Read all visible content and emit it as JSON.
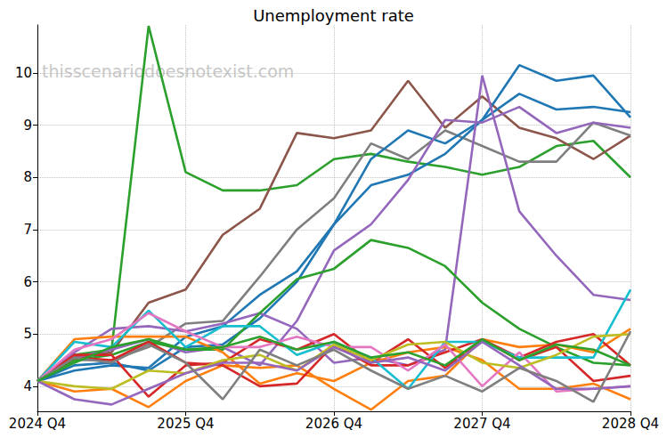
{
  "chart_data": {
    "type": "line",
    "title": "Unemployment rate",
    "annotations": [
      "thisscenariodoesnotexist.com"
    ],
    "categories": [
      "2024 Q4",
      null,
      null,
      null,
      "2025 Q4",
      null,
      null,
      null,
      "2026 Q4",
      null,
      null,
      null,
      "2027 Q4",
      null,
      null,
      null,
      "2028 Q4"
    ],
    "ylim": [
      3.52,
      10.92
    ],
    "yticks": [
      4,
      5,
      6,
      7,
      8,
      9,
      10
    ],
    "grid": true,
    "marker": "none",
    "series": [
      {
        "color": "#2ca02c",
        "values": [
          4.1,
          4.6,
          4.7,
          10.9,
          8.1,
          7.75,
          7.75,
          7.85,
          8.35,
          8.45,
          8.3,
          8.2,
          8.05,
          8.2,
          8.6,
          8.7,
          8.0
        ]
      },
      {
        "color": "#8c564b",
        "values": [
          4.1,
          4.55,
          4.65,
          5.6,
          5.85,
          6.9,
          7.4,
          8.85,
          8.75,
          8.9,
          9.85,
          8.95,
          9.55,
          8.95,
          8.75,
          8.35,
          8.8
        ]
      },
      {
        "color": "#7f7f7f",
        "values": [
          4.1,
          4.5,
          4.5,
          4.75,
          5.2,
          5.25,
          6.1,
          7.0,
          7.6,
          8.65,
          8.35,
          8.9,
          8.6,
          8.3,
          8.3,
          9.05,
          8.8
        ]
      },
      {
        "color": "#1f77b4",
        "values": [
          4.1,
          4.3,
          4.4,
          4.35,
          4.95,
          5.15,
          5.75,
          6.2,
          7.1,
          8.35,
          8.9,
          8.65,
          9.1,
          10.15,
          9.85,
          9.95,
          9.15
        ]
      },
      {
        "color": "#1f77b4",
        "values": [
          4.1,
          4.4,
          4.45,
          4.3,
          4.75,
          4.8,
          5.3,
          6.0,
          7.1,
          7.85,
          8.05,
          8.45,
          9.1,
          9.6,
          9.3,
          9.35,
          9.25
        ]
      },
      {
        "color": "#9467bd",
        "values": [
          4.1,
          4.55,
          4.7,
          4.9,
          4.65,
          4.75,
          4.4,
          5.25,
          6.6,
          7.1,
          7.95,
          9.1,
          9.05,
          9.35,
          8.85,
          9.05,
          8.95
        ]
      },
      {
        "color": "#9467bd",
        "values": [
          4.1,
          4.65,
          5.1,
          5.15,
          5.05,
          5.2,
          5.4,
          5.1,
          4.45,
          4.55,
          4.4,
          4.7,
          9.95,
          7.35,
          6.5,
          5.75,
          5.65
        ]
      },
      {
        "color": "#2ca02c",
        "values": [
          4.1,
          4.5,
          4.6,
          4.85,
          4.7,
          4.7,
          5.4,
          6.05,
          6.25,
          6.8,
          6.65,
          6.3,
          5.6,
          5.1,
          4.75,
          4.45,
          4.4
        ]
      },
      {
        "color": "#ff7f0e",
        "values": [
          4.1,
          4.9,
          4.95,
          4.95,
          4.95,
          4.65,
          4.05,
          4.25,
          4.1,
          4.45,
          4.65,
          4.75,
          4.5,
          3.95,
          3.95,
          4.05,
          3.75
        ]
      },
      {
        "color": "#ff7f0e",
        "values": [
          4.1,
          3.9,
          3.95,
          3.6,
          4.1,
          4.4,
          4.35,
          4.4,
          3.95,
          3.55,
          4.1,
          4.2,
          4.9,
          4.75,
          4.8,
          4.65,
          5.1
        ]
      },
      {
        "color": "#d62728",
        "values": [
          4.1,
          4.6,
          4.6,
          3.8,
          4.4,
          4.45,
          4.9,
          4.7,
          5.0,
          4.45,
          4.9,
          4.35,
          4.9,
          4.55,
          4.85,
          5.0,
          4.4
        ]
      },
      {
        "color": "#d62728",
        "values": [
          4.1,
          4.55,
          4.5,
          4.85,
          4.45,
          4.4,
          4.0,
          4.05,
          4.8,
          4.4,
          4.4,
          4.65,
          4.9,
          4.5,
          4.75,
          4.1,
          4.2
        ]
      },
      {
        "color": "#17becf",
        "values": [
          4.1,
          4.85,
          4.75,
          5.45,
          4.75,
          5.15,
          5.15,
          4.6,
          4.85,
          4.55,
          3.95,
          4.85,
          4.85,
          4.55,
          4.55,
          4.55,
          5.85
        ]
      },
      {
        "color": "#e377c2",
        "values": [
          4.1,
          4.7,
          4.9,
          5.4,
          5.05,
          4.75,
          4.75,
          4.95,
          4.75,
          4.75,
          4.3,
          4.8,
          4.0,
          4.65,
          3.9,
          3.95,
          4.0
        ]
      },
      {
        "color": "#bcbd22",
        "values": [
          4.1,
          4.0,
          3.95,
          4.3,
          4.25,
          4.5,
          4.6,
          4.3,
          4.8,
          4.5,
          4.8,
          4.85,
          4.45,
          4.35,
          4.6,
          4.95,
          5.0
        ]
      },
      {
        "color": "#9467bd",
        "values": [
          4.1,
          3.75,
          3.65,
          3.95,
          4.25,
          4.45,
          4.45,
          4.3,
          4.75,
          4.45,
          4.55,
          4.3,
          4.85,
          4.4,
          3.95,
          3.95,
          4.0
        ]
      },
      {
        "color": "#7f7f7f",
        "values": [
          4.1,
          4.55,
          4.45,
          4.8,
          4.45,
          3.75,
          4.7,
          4.4,
          4.7,
          4.3,
          3.95,
          4.2,
          3.9,
          4.35,
          4.1,
          3.7,
          5.05
        ]
      },
      {
        "color": "#2ca02c",
        "values": [
          4.1,
          4.45,
          4.75,
          4.9,
          4.7,
          4.75,
          4.95,
          4.7,
          4.85,
          4.55,
          4.65,
          4.4,
          4.9,
          4.5,
          4.8,
          4.7,
          4.4
        ]
      }
    ]
  }
}
